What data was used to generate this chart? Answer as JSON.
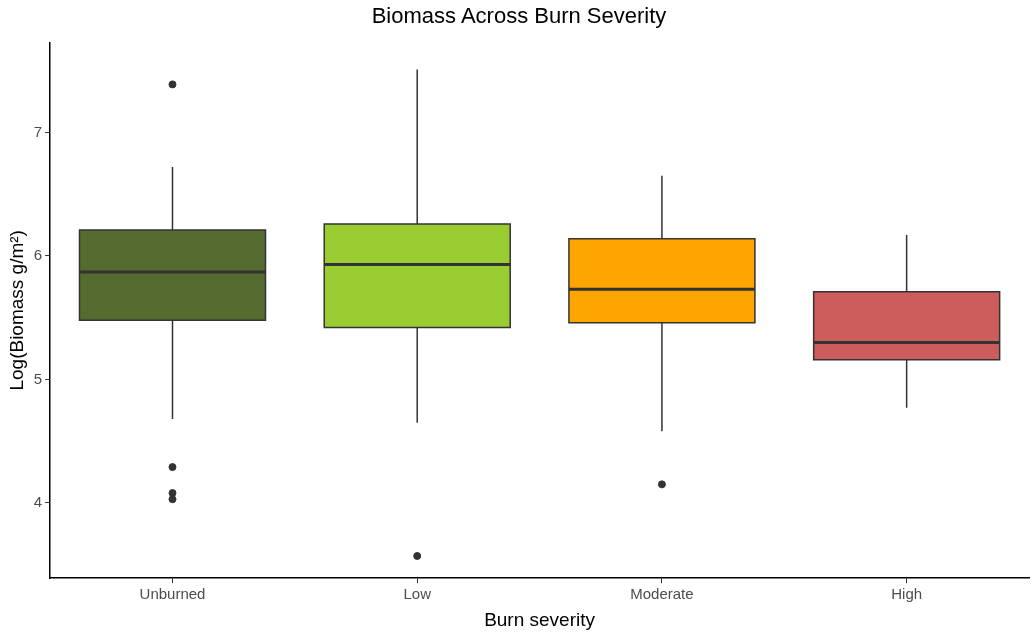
{
  "chart_data": {
    "type": "box",
    "title": "Biomass Across Burn Severity",
    "xlabel": "Burn severity",
    "ylabel": "Log(Biomass g/m²)",
    "categories": [
      "Unburned",
      "Low",
      "Moderate",
      "High"
    ],
    "colors": [
      "#556b2f",
      "#9acd32",
      "#ffa500",
      "#cd5c5c"
    ],
    "boxes": [
      {
        "low": 4.68,
        "q1": 5.48,
        "median": 5.87,
        "q3": 6.21,
        "high": 6.72,
        "outliers": [
          7.39,
          4.29,
          4.08,
          4.03
        ]
      },
      {
        "low": 4.65,
        "q1": 5.42,
        "median": 5.93,
        "q3": 6.26,
        "high": 7.51,
        "outliers": [
          3.57
        ]
      },
      {
        "low": 4.58,
        "q1": 5.46,
        "median": 5.73,
        "q3": 6.14,
        "high": 6.65,
        "outliers": [
          4.15
        ]
      },
      {
        "low": 4.77,
        "q1": 5.16,
        "median": 5.3,
        "q3": 5.71,
        "high": 6.17
      }
    ],
    "ylim": [
      3.39,
      7.73
    ],
    "yticks": [
      4,
      5,
      6,
      7
    ]
  }
}
